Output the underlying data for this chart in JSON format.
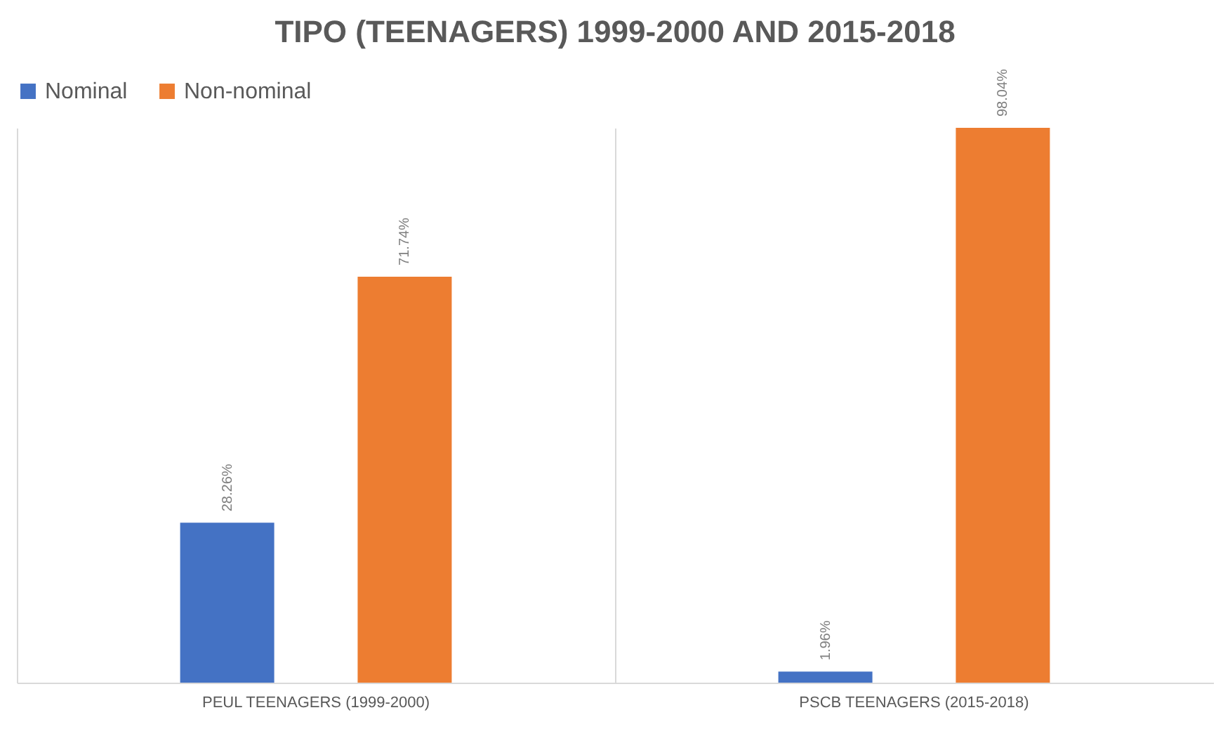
{
  "chart_data": {
    "type": "bar",
    "title": "TIPO (TEENAGERS) 1999-2000 AND 2015-2018",
    "categories": [
      "PEUL TEENAGERS (1999-2000)",
      "PSCB TEENAGERS (2015-2018)"
    ],
    "series": [
      {
        "name": "Nominal",
        "color": "#4472c4",
        "values": [
          28.26,
          1.96
        ],
        "value_labels": [
          "28.26%",
          "1.96%"
        ]
      },
      {
        "name": "Non-nominal",
        "color": "#ed7d31",
        "values": [
          71.74,
          98.04
        ],
        "value_labels": [
          "71.74%",
          "98.04%"
        ]
      }
    ],
    "grid": "x",
    "legend": "top"
  }
}
